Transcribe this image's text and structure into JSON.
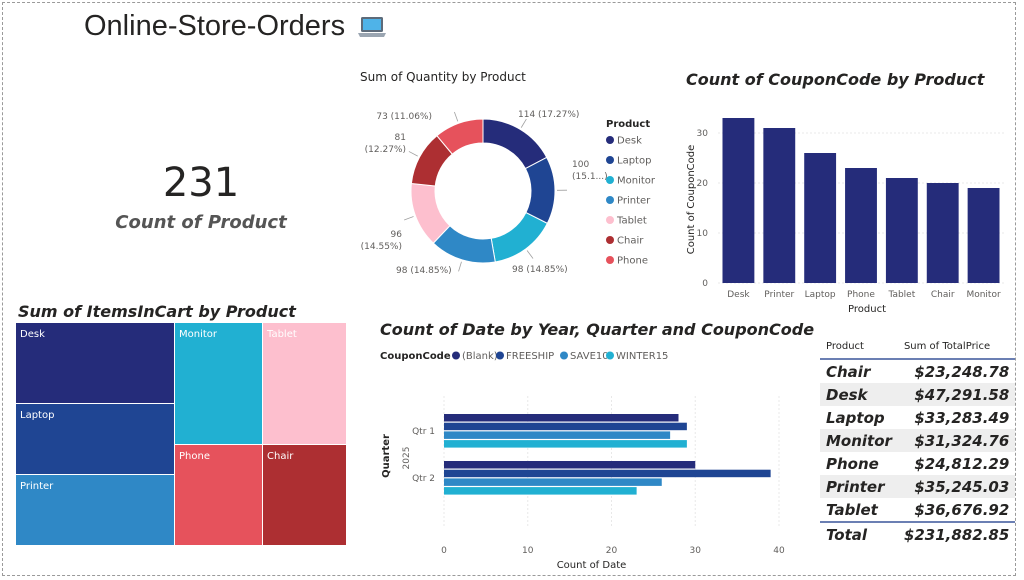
{
  "page_title": "Online-Store-Orders",
  "card": {
    "value": "231",
    "label": "Count of Product"
  },
  "chart_data": [
    {
      "type": "pie",
      "title": "Sum of Quantity by Product",
      "legend_title": "Product",
      "legend_position": "right",
      "categories": [
        "Desk",
        "Laptop",
        "Monitor",
        "Printer",
        "Tablet",
        "Chair",
        "Phone"
      ],
      "values": [
        114,
        100,
        98,
        98,
        96,
        81,
        73
      ],
      "data_labels": [
        "114 (17.27%)",
        "100 (15.1...)",
        "98 (14.85%)",
        "98 (14.85%)",
        "96 (14.55%)",
        "81 (12.27%)",
        "73 (11.06%)"
      ],
      "colors": [
        "#252c7a",
        "#1f4593",
        "#21b0d2",
        "#2f88c6",
        "#fdbfce",
        "#ad2f32",
        "#e6525c"
      ]
    },
    {
      "type": "bar",
      "title": "Count of CouponCode by Product",
      "xlabel": "Product",
      "ylabel": "Count of CouponCode",
      "ylim": [
        0,
        35
      ],
      "yticks": [
        "0",
        "10",
        "20",
        "30"
      ],
      "grid": true,
      "categories": [
        "Desk",
        "Printer",
        "Laptop",
        "Phone",
        "Tablet",
        "Chair",
        "Monitor"
      ],
      "values": [
        33,
        31,
        26,
        23,
        21,
        20,
        19
      ],
      "color": "#252c7a"
    },
    {
      "type": "treemap",
      "title": "Sum of ItemsInCart by Product",
      "categories": [
        "Desk",
        "Laptop",
        "Printer",
        "Monitor",
        "Phone",
        "Tablet",
        "Chair"
      ],
      "colors": [
        "#252c7a",
        "#1f4593",
        "#2f88c6",
        "#21b0d2",
        "#e6525c",
        "#fdbfce",
        "#ad2f32"
      ]
    },
    {
      "type": "bar",
      "orientation": "horizontal",
      "title": "Count of Date by Year, Quarter and CouponCode",
      "xlabel": "Count of Date",
      "ylabel": "Quarter",
      "year_label": "2025",
      "legend_title": "CouponCode",
      "legend_position": "top",
      "xlim": [
        0,
        40
      ],
      "xticks": [
        "0",
        "10",
        "20",
        "30",
        "40"
      ],
      "categories": [
        "Qtr 1",
        "Qtr 2"
      ],
      "series": [
        {
          "name": "(Blank)",
          "values": [
            28,
            30
          ],
          "color": "#252c7a"
        },
        {
          "name": "FREESHIP",
          "values": [
            29,
            39
          ],
          "color": "#1f4593"
        },
        {
          "name": "SAVE10",
          "values": [
            27,
            26
          ],
          "color": "#2f88c6"
        },
        {
          "name": "WINTER15",
          "values": [
            29,
            23
          ],
          "color": "#21b0d2"
        }
      ]
    },
    {
      "type": "table",
      "columns": [
        "Product",
        "Sum of TotalPrice"
      ],
      "rows": [
        [
          "Chair",
          "$23,248.78"
        ],
        [
          "Desk",
          "$47,291.58"
        ],
        [
          "Laptop",
          "$33,283.49"
        ],
        [
          "Monitor",
          "$31,324.76"
        ],
        [
          "Phone",
          "$24,812.29"
        ],
        [
          "Printer",
          "$35,245.03"
        ],
        [
          "Tablet",
          "$36,676.92"
        ]
      ],
      "total": [
        "Total",
        "$231,882.85"
      ]
    }
  ]
}
